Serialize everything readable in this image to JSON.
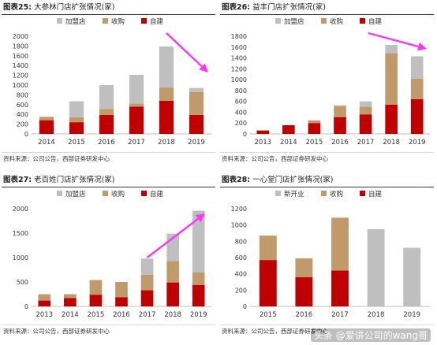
{
  "chart_data": [
    {
      "type": "bar",
      "stacked": true,
      "fig_label": "图表25:",
      "title": "大参林门店扩张情况(家)",
      "categories": [
        "2014",
        "2015",
        "2016",
        "2017",
        "2018",
        "2019"
      ],
      "series": [
        {
          "name": "自建",
          "color": "#c00000",
          "values": [
            280,
            240,
            390,
            560,
            680,
            390
          ]
        },
        {
          "name": "收购",
          "color": "#c19a6b",
          "values": [
            70,
            100,
            120,
            60,
            270,
            470
          ]
        },
        {
          "name": "加盟店",
          "color": "#bfbfbf",
          "values": [
            0,
            330,
            490,
            590,
            840,
            80
          ]
        }
      ],
      "ylim": [
        0,
        2000
      ],
      "yticks": [
        0,
        200,
        400,
        600,
        800,
        1000,
        1200,
        1400,
        1600,
        1800,
        2000
      ],
      "arrow": true,
      "source": "资料来源：公司公告，西部证券研发中心"
    },
    {
      "type": "bar",
      "stacked": true,
      "fig_label": "图表26:",
      "title": "益丰门店扩张情况(家)",
      "categories": [
        "2013",
        "2014",
        "2015",
        "2016",
        "2017",
        "2018",
        "2019"
      ],
      "series": [
        {
          "name": "自建",
          "color": "#c00000",
          "values": [
            60,
            160,
            200,
            310,
            360,
            540,
            640
          ]
        },
        {
          "name": "收购",
          "color": "#c19a6b",
          "values": [
            10,
            0,
            50,
            200,
            140,
            950,
            380
          ]
        },
        {
          "name": "加盟店",
          "color": "#bfbfbf",
          "values": [
            0,
            0,
            0,
            20,
            100,
            150,
            410
          ]
        }
      ],
      "ylim": [
        0,
        1800
      ],
      "yticks": [
        0,
        200,
        400,
        600,
        800,
        1000,
        1200,
        1400,
        1600,
        1800
      ],
      "arrow": true,
      "source": "资料来源：公司公告，西部证券研发中心"
    },
    {
      "type": "bar",
      "stacked": true,
      "fig_label": "图表27:",
      "title": "老百姓门店扩张情况(家)",
      "categories": [
        "2013",
        "2014",
        "2015",
        "2016",
        "2017",
        "2018",
        "2019"
      ],
      "series": [
        {
          "name": "自建",
          "color": "#c00000",
          "values": [
            120,
            170,
            240,
            190,
            330,
            490,
            440
          ]
        },
        {
          "name": "收购",
          "color": "#c19a6b",
          "values": [
            130,
            80,
            300,
            310,
            320,
            440,
            260
          ]
        },
        {
          "name": "加盟店",
          "color": "#bfbfbf",
          "values": [
            0,
            0,
            0,
            0,
            330,
            560,
            1260
          ]
        }
      ],
      "ylim": [
        0,
        2000
      ],
      "yticks": [
        0,
        500,
        1000,
        1500,
        2000
      ],
      "arrow": true,
      "source": "资料来源：公司公告，西部证券研发中心"
    },
    {
      "type": "bar",
      "stacked": true,
      "fig_label": "图表28:",
      "title": "一心堂门店扩张情况(家)",
      "categories": [
        "2015",
        "2016",
        "2017",
        "2018",
        "2019"
      ],
      "series": [
        {
          "name": "自建",
          "color": "#c00000",
          "values": [
            570,
            360,
            440,
            0,
            0
          ]
        },
        {
          "name": "收购",
          "color": "#c19a6b",
          "values": [
            300,
            230,
            650,
            0,
            0
          ]
        },
        {
          "name": "新开业",
          "color": "#bfbfbf",
          "values": [
            0,
            0,
            0,
            950,
            720
          ]
        }
      ],
      "ylim": [
        0,
        1200
      ],
      "yticks": [
        0,
        200,
        400,
        600,
        800,
        1000,
        1200
      ],
      "arrow": false,
      "source": "资料来源：公司公告，西部证券研发中心"
    }
  ],
  "watermark": "头条 @爱讲公司的wang哥"
}
